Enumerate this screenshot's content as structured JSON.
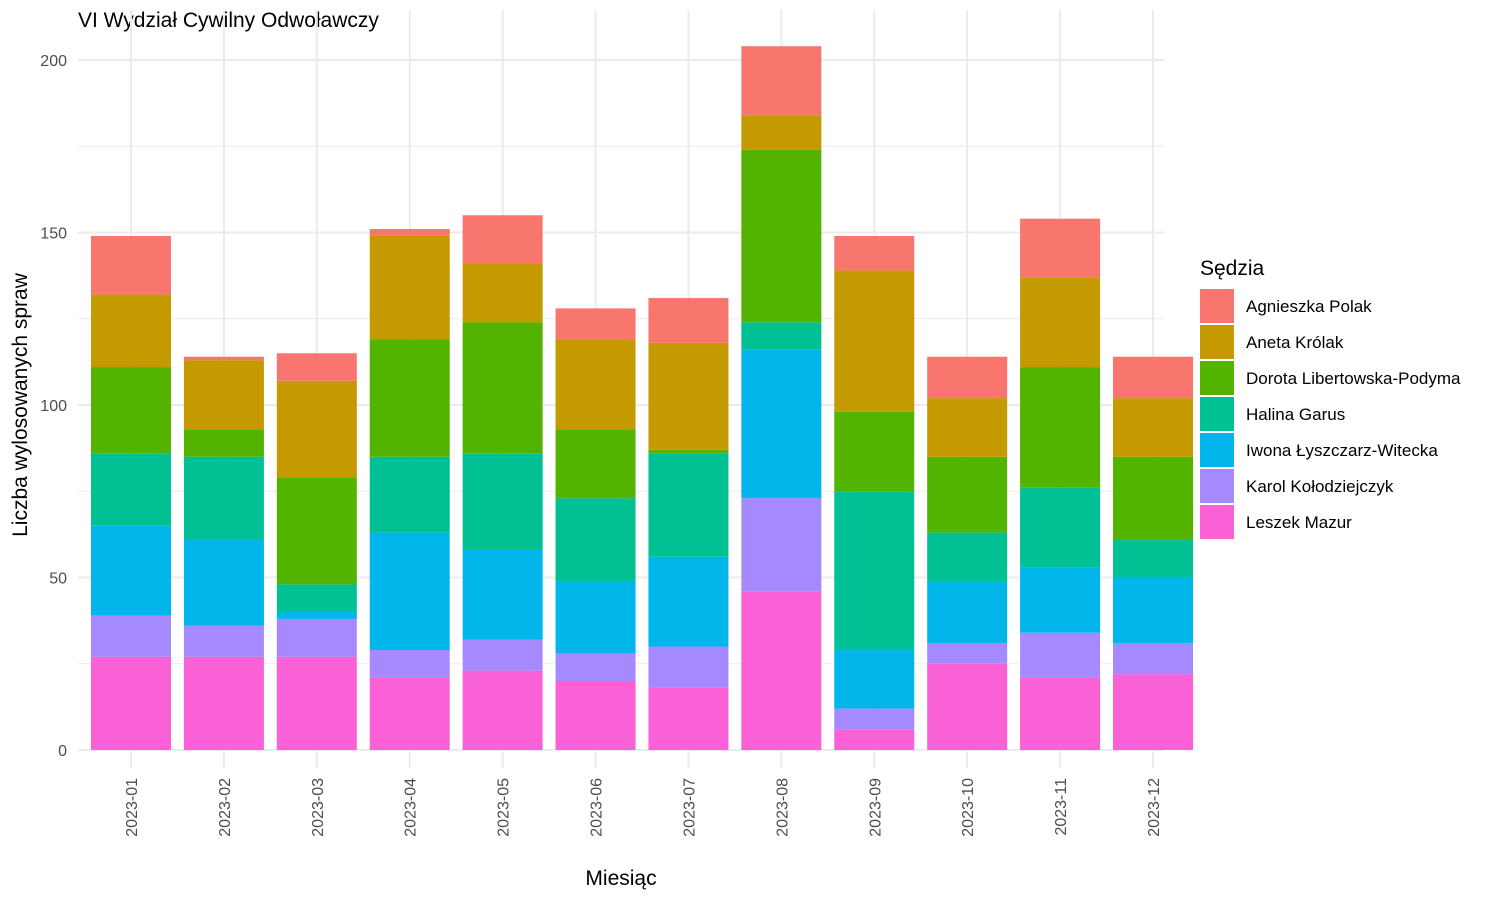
{
  "chart_data": {
    "type": "bar",
    "stacked": true,
    "title": "VI Wydział Cywilny Odwoławczy",
    "xlabel": "Miesiąc",
    "ylabel": "Liczba wylosowanych spraw",
    "ylim": [
      0,
      210
    ],
    "yticks": [
      0,
      50,
      100,
      150,
      200
    ],
    "grid": true,
    "legend": {
      "title": "Sędzia",
      "placement": "right"
    },
    "categories": [
      "2023-01",
      "2023-02",
      "2023-03",
      "2023-04",
      "2023-05",
      "2023-06",
      "2023-07",
      "2023-08",
      "2023-09",
      "2023-10",
      "2023-11",
      "2023-12"
    ],
    "series": [
      {
        "name": "Agnieszka Polak",
        "color": "#F8766D",
        "values": [
          17,
          1,
          8,
          2,
          14,
          9,
          13,
          20,
          10,
          12,
          17,
          12
        ]
      },
      {
        "name": "Aneta Królak",
        "color": "#C49A00",
        "values": [
          21,
          20,
          28,
          30,
          17,
          26,
          31,
          10,
          41,
          17,
          26,
          17
        ]
      },
      {
        "name": "Dorota Libertowska-Podyma",
        "color": "#53B400",
        "values": [
          25,
          8,
          31,
          34,
          38,
          20,
          1,
          50,
          23,
          22,
          35,
          24
        ]
      },
      {
        "name": "Halina Garus",
        "color": "#00C094",
        "values": [
          21,
          24,
          8,
          22,
          28,
          24,
          30,
          8,
          46,
          14,
          23,
          11
        ]
      },
      {
        "name": "Iwona Łyszczarz-Witecka",
        "color": "#00B6EB",
        "values": [
          26,
          25,
          2,
          34,
          26,
          21,
          26,
          43,
          17,
          18,
          19,
          19
        ]
      },
      {
        "name": "Karol Kołodziejczyk",
        "color": "#A58AFF",
        "values": [
          12,
          9,
          11,
          8,
          9,
          8,
          12,
          27,
          6,
          6,
          13,
          9
        ]
      },
      {
        "name": "Leszek Mazur",
        "color": "#FB61D7",
        "values": [
          27,
          27,
          27,
          21,
          23,
          20,
          18,
          46,
          6,
          25,
          21,
          22
        ]
      }
    ]
  }
}
